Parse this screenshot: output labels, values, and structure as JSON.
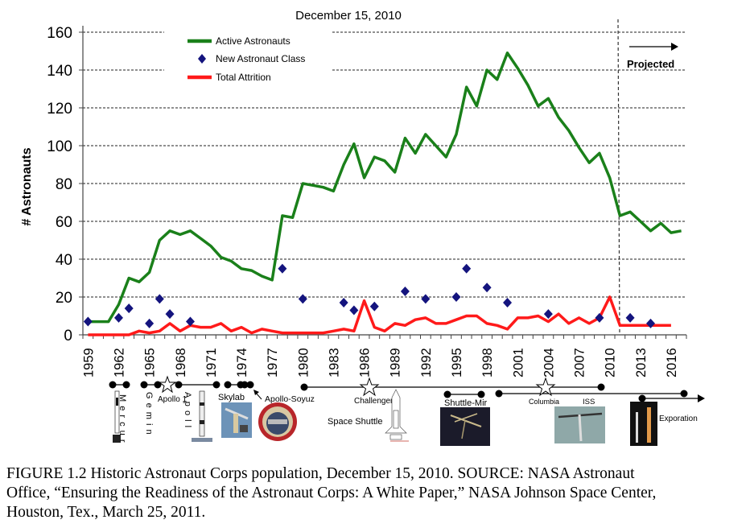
{
  "chart_data": {
    "type": "line",
    "title": "December 15, 2010",
    "ylabel": "# Astronauts",
    "xlabel": "",
    "ylim": [
      0,
      160
    ],
    "yticks": [
      0,
      20,
      40,
      60,
      80,
      100,
      120,
      140,
      160
    ],
    "xlim": [
      1959,
      2017
    ],
    "xtick_labels": [
      "1959",
      "1962",
      "1965",
      "1968",
      "1971",
      "1974",
      "1977",
      "1980",
      "1983",
      "1986",
      "1989",
      "1992",
      "1995",
      "1998",
      "2001",
      "2004",
      "2007",
      "2010",
      "2013",
      "2016"
    ],
    "grid": "horizontal dashed",
    "legend_position": "top-left",
    "projected_from": 2011,
    "projected_label": "Projected",
    "colors": {
      "active": "#1a801a",
      "new_class": "#14147e",
      "attrition": "#ff1a1a"
    },
    "series": [
      {
        "name": "Active Astronauts",
        "type": "line",
        "x": [
          1959,
          1960,
          1961,
          1962,
          1963,
          1964,
          1965,
          1966,
          1967,
          1968,
          1969,
          1970,
          1971,
          1972,
          1973,
          1974,
          1975,
          1976,
          1977,
          1978,
          1979,
          1980,
          1981,
          1982,
          1983,
          1984,
          1985,
          1986,
          1987,
          1988,
          1989,
          1990,
          1991,
          1992,
          1993,
          1994,
          1995,
          1996,
          1997,
          1998,
          1999,
          2000,
          2001,
          2002,
          2003,
          2004,
          2005,
          2006,
          2007,
          2008,
          2009,
          2010,
          2011,
          2012,
          2013,
          2014,
          2015,
          2016,
          2017
        ],
        "y": [
          7,
          7,
          7,
          16,
          30,
          28,
          33,
          50,
          55,
          53,
          55,
          51,
          47,
          41,
          39,
          35,
          34,
          31,
          29,
          63,
          62,
          80,
          79,
          78,
          76,
          90,
          101,
          83,
          94,
          92,
          86,
          104,
          96,
          106,
          100,
          94,
          106,
          131,
          121,
          140,
          135,
          149,
          141,
          132,
          121,
          125,
          115,
          108,
          99,
          91,
          96,
          83,
          63,
          65,
          60,
          55,
          59,
          54,
          55
        ]
      },
      {
        "name": "New Astronaut Class",
        "type": "scatter",
        "x": [
          1959,
          1962,
          1963,
          1965,
          1966,
          1967,
          1969,
          1978,
          1980,
          1984,
          1985,
          1987,
          1990,
          1992,
          1995,
          1996,
          1998,
          2000,
          2004,
          2009,
          2012,
          2014
        ],
        "y": [
          7,
          9,
          14,
          6,
          19,
          11,
          7,
          35,
          19,
          17,
          13,
          15,
          23,
          19,
          20,
          35,
          25,
          17,
          11,
          9,
          9,
          6
        ]
      },
      {
        "name": "Total Attrition",
        "type": "line",
        "x": [
          1959,
          1960,
          1961,
          1962,
          1963,
          1964,
          1965,
          1966,
          1967,
          1968,
          1969,
          1970,
          1971,
          1972,
          1973,
          1974,
          1975,
          1976,
          1977,
          1978,
          1979,
          1980,
          1981,
          1982,
          1983,
          1984,
          1985,
          1986,
          1987,
          1988,
          1989,
          1990,
          1991,
          1992,
          1993,
          1994,
          1995,
          1996,
          1997,
          1998,
          1999,
          2000,
          2001,
          2002,
          2003,
          2004,
          2005,
          2006,
          2007,
          2008,
          2009,
          2010,
          2011,
          2012,
          2013,
          2014,
          2015,
          2016
        ],
        "y": [
          0,
          0,
          0,
          0,
          0,
          2,
          1,
          2,
          6,
          2,
          5,
          4,
          4,
          6,
          2,
          4,
          1,
          3,
          2,
          1,
          1,
          1,
          1,
          1,
          2,
          3,
          2,
          18,
          4,
          2,
          6,
          5,
          8,
          9,
          6,
          6,
          8,
          10,
          10,
          6,
          5,
          3,
          9,
          9,
          10,
          7,
          11,
          6,
          9,
          6,
          9,
          20,
          5,
          5,
          5,
          5,
          5,
          5
        ]
      }
    ]
  },
  "timeline": {
    "mercury": "M e r c u r",
    "gemini": "G e m i n",
    "apollo1": "Apollo 1",
    "apollo": "A p o l l",
    "skylab": "Skylab",
    "apollo_soyuz": "Apollo-Soyuz",
    "challenger": "Challenger",
    "space_shuttle": "Space Shuttle",
    "shuttle_mir": "Shuttle-Mir",
    "columbia": "Columbia",
    "iss": "ISS",
    "exploration": "Exporation"
  },
  "caption": {
    "line1": "FIGURE 1.2  Historic Astronaut Corps population, December 15, 2010. SOURCE:  NASA Astronaut",
    "line2": "Office, “Ensuring the Readiness of the Astronaut Corps: A White Paper,” NASA Johnson Space Center,",
    "line3": "Houston, Tex., March 25, 2011."
  }
}
